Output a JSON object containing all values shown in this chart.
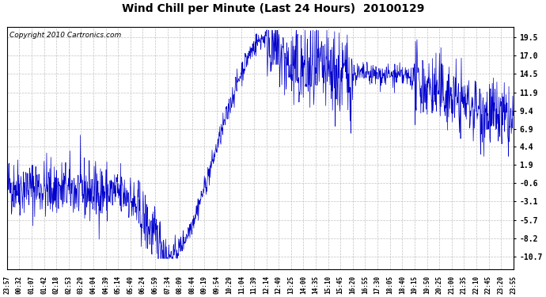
{
  "title": "Wind Chill per Minute (Last 24 Hours)  20100129",
  "copyright_text": "Copyright 2010 Cartronics.com",
  "line_color": "#0000CC",
  "background_color": "#ffffff",
  "plot_bg_color": "#ffffff",
  "yticks": [
    19.5,
    17.0,
    14.5,
    11.9,
    9.4,
    6.9,
    4.4,
    1.9,
    -0.6,
    -3.1,
    -5.7,
    -8.2,
    -10.7
  ],
  "ylim": [
    -12.5,
    21.0
  ],
  "xtick_labels": [
    "23:57",
    "00:32",
    "01:07",
    "01:42",
    "02:18",
    "02:53",
    "03:29",
    "04:04",
    "04:39",
    "05:14",
    "05:49",
    "06:24",
    "06:59",
    "07:34",
    "08:09",
    "08:44",
    "09:19",
    "09:54",
    "10:29",
    "11:04",
    "11:39",
    "12:14",
    "12:49",
    "13:25",
    "14:00",
    "14:35",
    "15:10",
    "15:45",
    "16:20",
    "16:55",
    "17:30",
    "18:05",
    "18:40",
    "19:15",
    "19:50",
    "20:25",
    "21:00",
    "21:35",
    "22:10",
    "22:45",
    "23:20",
    "23:55"
  ],
  "grid_color": "#bbbbbb",
  "title_fontsize": 10,
  "copyright_fontsize": 6.5
}
